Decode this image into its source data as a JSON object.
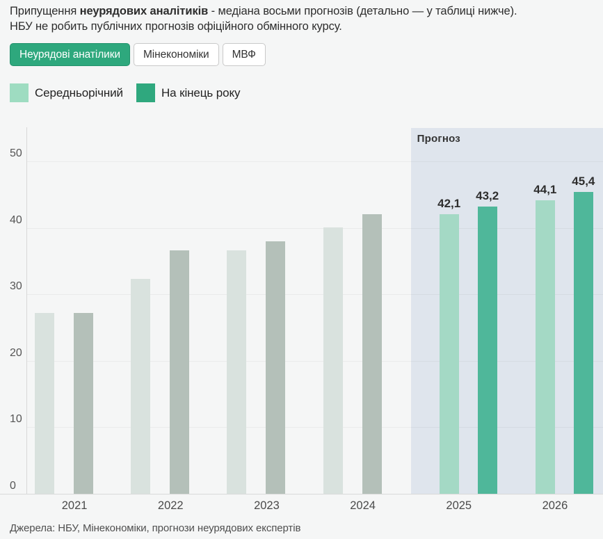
{
  "header": {
    "line1_prefix": "Припущення ",
    "line1_bold": "неурядових аналітиків",
    "line1_suffix": " - медіана восьми прогнозів (детально — у таблиці нижче).",
    "line2": "НБУ не робить публічних прогнозів офіційного обмінного курсу."
  },
  "tabs": [
    {
      "label": "Неурядові анатілики",
      "active": true
    },
    {
      "label": "Мінекономіки",
      "active": false
    },
    {
      "label": "МВФ",
      "active": false
    }
  ],
  "legend": [
    {
      "label": "Середньорічний",
      "swatch": "legend_light"
    },
    {
      "label": "На кінець року",
      "swatch": "legend_dark"
    }
  ],
  "colors": {
    "legend_light": "#9edcc1",
    "legend_dark": "#2fa87e",
    "hist_light": "#d9e2de",
    "hist_dark": "#b4c0b9",
    "forecast_light": "#a4d9c5",
    "forecast_dark": "#4fb79a",
    "band": "#dfe5ed",
    "tab_active": "#2ea87d"
  },
  "chart_data": {
    "type": "bar",
    "title": "",
    "xlabel": "",
    "ylabel": "",
    "categories": [
      "2021",
      "2022",
      "2023",
      "2024",
      "2025",
      "2026"
    ],
    "series": [
      {
        "name": "Середньорічний",
        "values": [
          27.2,
          32.3,
          36.6,
          40.1,
          42.1,
          44.1
        ],
        "labels": [
          "",
          "",
          "",
          "",
          "42,1",
          "44,1"
        ]
      },
      {
        "name": "На кінець року",
        "values": [
          27.2,
          36.6,
          38.0,
          42.0,
          43.2,
          45.4
        ],
        "labels": [
          "",
          "",
          "",
          "",
          "43,2",
          "45,4"
        ]
      }
    ],
    "ylim": [
      0,
      55
    ],
    "yticks": [
      0,
      10,
      20,
      30,
      40,
      50
    ],
    "ytick_labels": [
      "0",
      "10",
      "20",
      "30",
      "40",
      "50"
    ],
    "grid": true,
    "legend_position": "top-left",
    "forecast_categories": [
      "2025",
      "2026"
    ],
    "forecast_label": "Прогноз"
  },
  "source": "Джерела: НБУ, Мінекономіки, прогнози неурядових експертів"
}
